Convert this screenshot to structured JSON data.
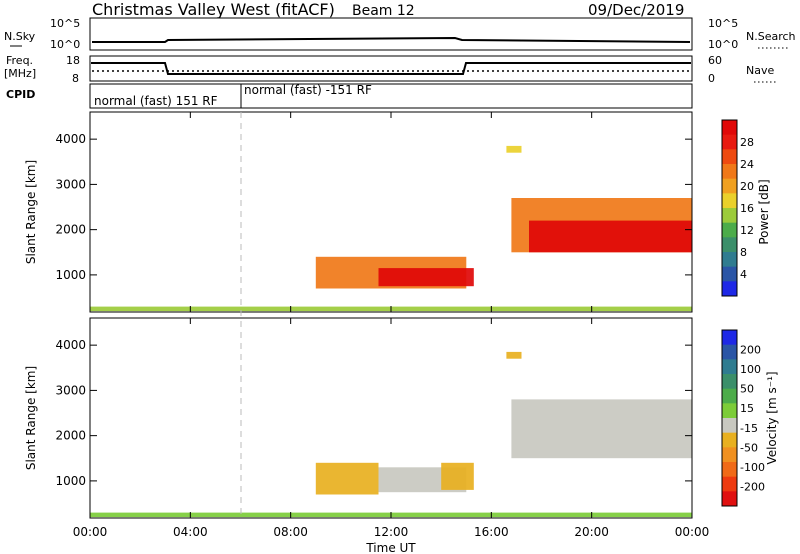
{
  "header": {
    "title": "Christmas Valley West (fitACF)",
    "beam": "Beam 12",
    "date": "09/Dec/2019"
  },
  "strip_labels": {
    "nsky": "N.Sky",
    "nsky_ticks": [
      "10^5",
      "10^0"
    ],
    "nsearch": "N.Search",
    "nsearch_ticks": [
      "10^5",
      "10^0"
    ],
    "freq": "Freq.",
    "freq_unit": "[MHz]",
    "freq_ticks": [
      "18",
      "8"
    ],
    "nave": "Nave",
    "nave_ticks": [
      "60",
      "0"
    ],
    "cpid": "CPID",
    "cpid_1": "normal (fast) 151 RF",
    "cpid_2": "normal (fast) -151 RF"
  },
  "colors": {
    "power": [
      "#1e28e6",
      "#2a55a6",
      "#2f7c90",
      "#3b8f6a",
      "#4cac4a",
      "#9ccb3a",
      "#ead02b",
      "#f0a020",
      "#f07818",
      "#ee4a10",
      "#e81a10",
      "#e00808"
    ],
    "velocity": [
      "#1e28e6",
      "#2a55a6",
      "#2f7c90",
      "#3b8f6a",
      "#4cac4a",
      "#7ccc38",
      "#c8c8c0",
      "#e8b020",
      "#f09020",
      "#f06a18",
      "#ee3a10",
      "#e01010"
    ]
  },
  "chart_data": [
    {
      "type": "heatmap",
      "panel": "power",
      "ylabel": "Slant Range [km]",
      "ylim": [
        180,
        4600
      ],
      "yticks": [
        "1000",
        "2000",
        "3000",
        "4000"
      ],
      "xticks": [
        "00:00",
        "04:00",
        "08:00",
        "12:00",
        "16:00",
        "20:00",
        "00:00"
      ],
      "colorbar_label": "Power [dB]",
      "colorbar_ticks": [
        "4",
        "8",
        "12",
        "16",
        "20",
        "24",
        "28"
      ],
      "regions": [
        {
          "t0": 0.0,
          "t1": 24.0,
          "r0": 200,
          "r1": 300,
          "value": 14
        },
        {
          "t0": 9.0,
          "t1": 15.0,
          "r0": 700,
          "r1": 1400,
          "value": 20
        },
        {
          "t0": 11.5,
          "t1": 15.3,
          "r0": 750,
          "r1": 1150,
          "value": 28
        },
        {
          "t0": 16.8,
          "t1": 24.0,
          "r0": 1500,
          "r1": 2700,
          "value": 20
        },
        {
          "t0": 17.5,
          "t1": 24.0,
          "r0": 1500,
          "r1": 2200,
          "value": 28
        },
        {
          "t0": 16.6,
          "t1": 17.2,
          "r0": 3700,
          "r1": 3850,
          "value": 16
        }
      ]
    },
    {
      "type": "heatmap",
      "panel": "velocity",
      "ylabel": "Slant Range [km]",
      "xlabel": "Time UT",
      "ylim": [
        180,
        4600
      ],
      "yticks": [
        "1000",
        "2000",
        "3000",
        "4000"
      ],
      "xticks": [
        "00:00",
        "04:00",
        "08:00",
        "12:00",
        "16:00",
        "20:00",
        "00:00"
      ],
      "colorbar_label": "Velocity [m s⁻¹]",
      "colorbar_ticks": [
        "200",
        "100",
        "50",
        "15",
        "-15",
        "-50",
        "-100",
        "-200"
      ],
      "regions": [
        {
          "t0": 0.0,
          "t1": 24.0,
          "r0": 200,
          "r1": 300,
          "value": 15
        },
        {
          "t0": 9.0,
          "t1": 11.5,
          "r0": 700,
          "r1": 1400,
          "value": -50
        },
        {
          "t0": 11.5,
          "t1": 15.0,
          "r0": 750,
          "r1": 1300,
          "value": 0
        },
        {
          "t0": 14.0,
          "t1": 15.3,
          "r0": 800,
          "r1": 1400,
          "value": -40
        },
        {
          "t0": 16.8,
          "t1": 24.0,
          "r0": 1500,
          "r1": 2800,
          "value": 0
        },
        {
          "t0": 16.6,
          "t1": 17.2,
          "r0": 3700,
          "r1": 3850,
          "value": -60
        }
      ]
    }
  ]
}
